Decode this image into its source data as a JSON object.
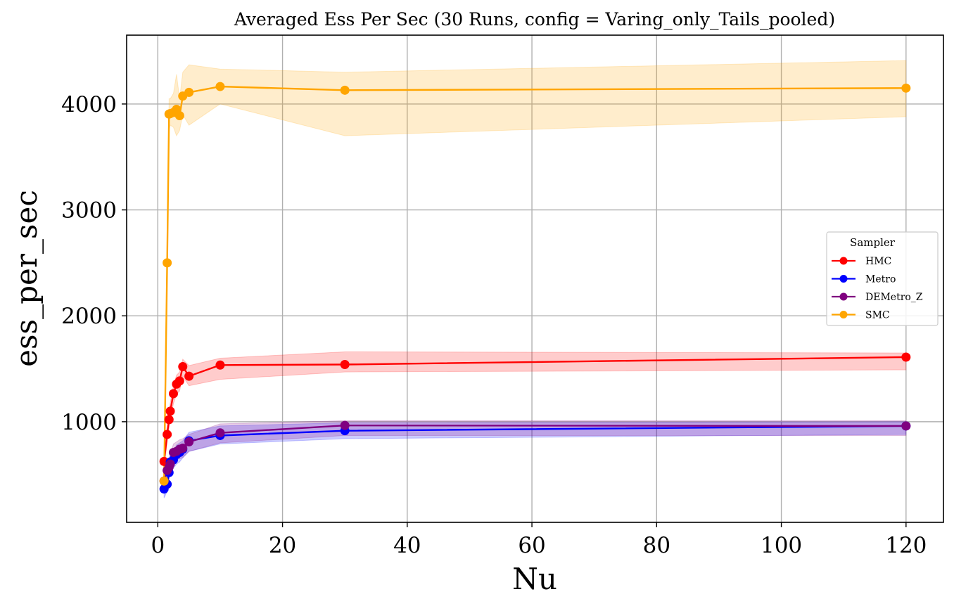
{
  "chart_data": {
    "type": "line",
    "title": "Averaged Ess Per Sec (30 Runs, config = Varing_only_Tails_pooled)",
    "xlabel": "Nu",
    "ylabel": "ess_per_sec",
    "xlim": [
      -5,
      126
    ],
    "ylim": [
      50,
      4650
    ],
    "xticks": [
      0,
      20,
      40,
      60,
      80,
      100,
      120
    ],
    "yticks": [
      1000,
      2000,
      3000,
      4000
    ],
    "grid": true,
    "legend": {
      "title": "Sampler",
      "placement": "center-right"
    },
    "series": [
      {
        "name": "HMC",
        "color": "#ff0000",
        "x": [
          1,
          1.5,
          1.8,
          2,
          2.5,
          3,
          3.5,
          4,
          5,
          10,
          30,
          120
        ],
        "y": [
          625,
          880,
          1020,
          1100,
          1265,
          1355,
          1385,
          1520,
          1430,
          1535,
          1540,
          1610
        ],
        "band_lower": [
          560,
          800,
          940,
          1020,
          1170,
          1260,
          1290,
          1430,
          1340,
          1400,
          1470,
          1490
        ],
        "band_upper": [
          700,
          960,
          1100,
          1180,
          1340,
          1440,
          1470,
          1590,
          1530,
          1600,
          1660,
          1650
        ]
      },
      {
        "name": "Metro",
        "color": "#0000ff",
        "x": [
          1,
          1.5,
          1.8,
          2,
          2.5,
          3,
          3.5,
          4,
          5,
          10,
          30,
          120
        ],
        "y": [
          365,
          410,
          520,
          620,
          640,
          690,
          710,
          740,
          820,
          870,
          915,
          960
        ],
        "band_lower": [
          280,
          340,
          440,
          520,
          560,
          600,
          620,
          660,
          720,
          790,
          840,
          880
        ],
        "band_upper": [
          450,
          500,
          600,
          700,
          720,
          780,
          800,
          820,
          900,
          960,
          990,
          1000
        ]
      },
      {
        "name": "DEMetro_Z",
        "color": "#800080",
        "x": [
          1,
          1.5,
          1.8,
          2,
          2.5,
          3,
          3.5,
          4,
          5,
          10,
          30,
          120
        ],
        "y": [
          440,
          540,
          570,
          600,
          710,
          720,
          740,
          750,
          810,
          895,
          965,
          960
        ],
        "band_lower": [
          350,
          460,
          490,
          520,
          620,
          640,
          650,
          660,
          720,
          800,
          870,
          870
        ],
        "band_upper": [
          520,
          620,
          650,
          690,
          790,
          810,
          830,
          840,
          880,
          980,
          1010,
          1010
        ]
      },
      {
        "name": "SMC",
        "color": "#ffa500",
        "x": [
          1,
          1.5,
          1.8,
          2,
          2.5,
          3,
          3.5,
          4,
          5,
          10,
          30,
          120
        ],
        "y": [
          440,
          2500,
          3905,
          3910,
          3920,
          3950,
          3890,
          4075,
          4110,
          4165,
          4130,
          4150
        ],
        "band_lower": [
          400,
          2350,
          3750,
          3800,
          3780,
          3700,
          3750,
          3900,
          3800,
          4000,
          3700,
          3880
        ],
        "band_upper": [
          480,
          2650,
          4050,
          4050,
          4100,
          4280,
          4050,
          4300,
          4370,
          4330,
          4300,
          4410
        ]
      }
    ]
  }
}
